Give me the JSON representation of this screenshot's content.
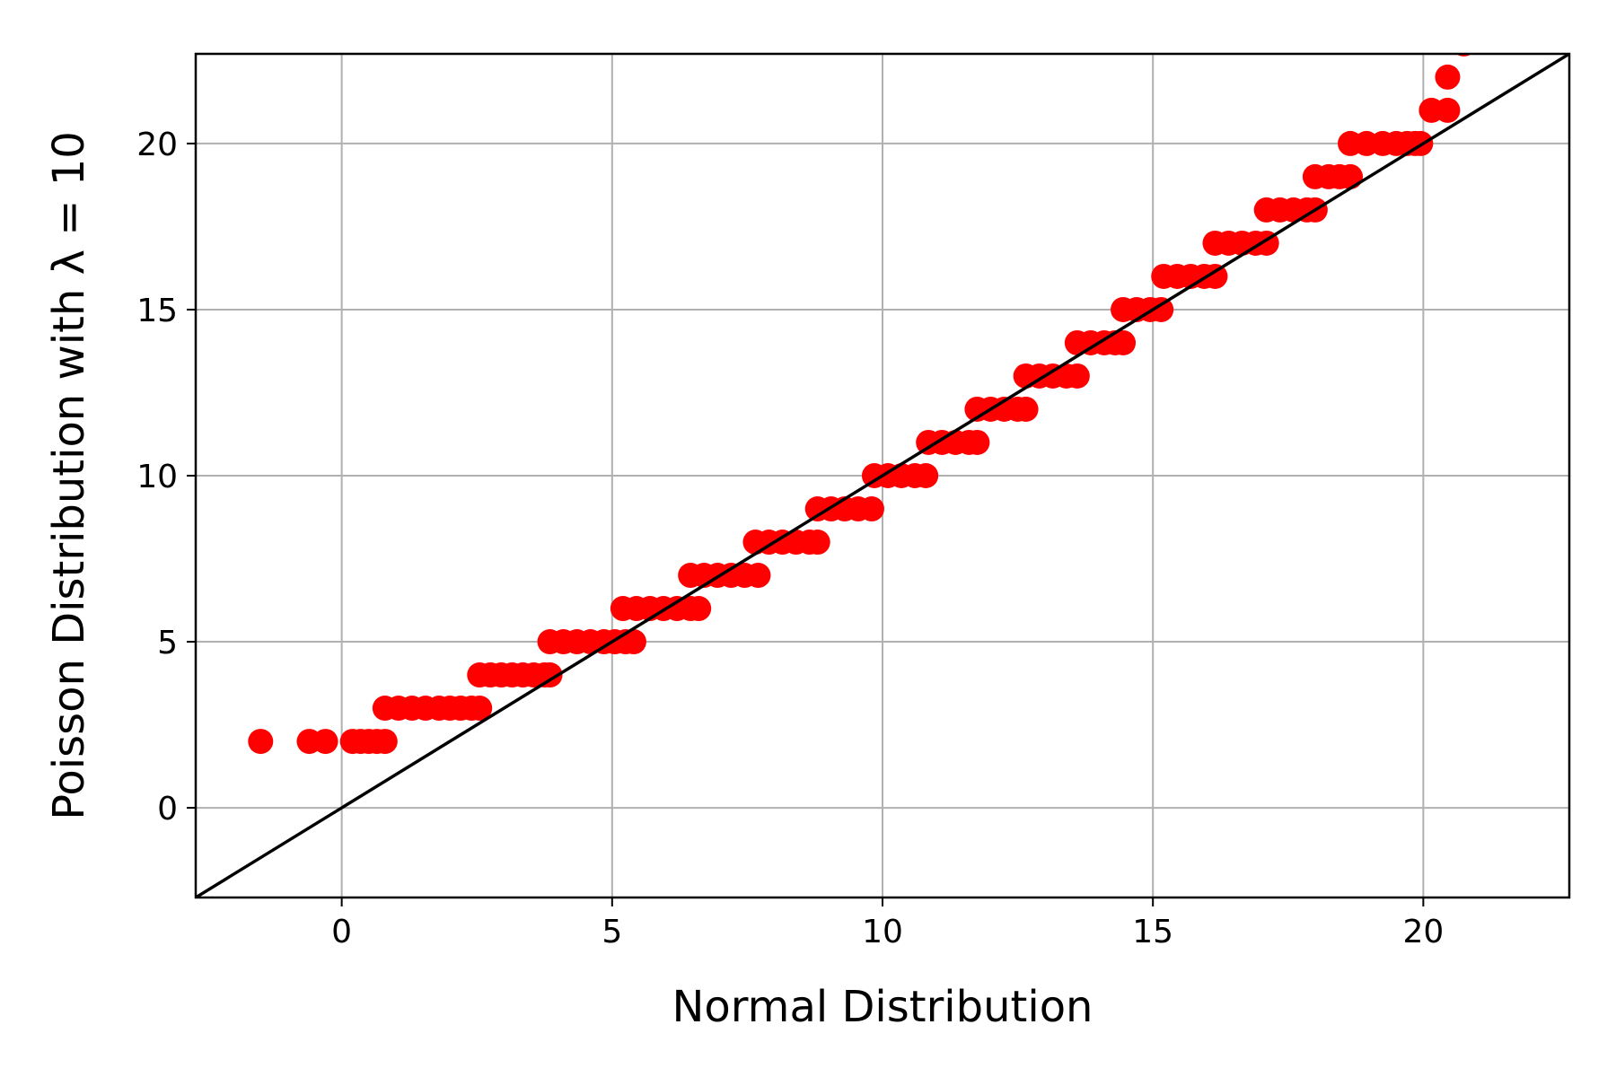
{
  "chart_data": {
    "type": "scatter",
    "title": "",
    "xlabel": "Normal Distribution",
    "ylabel": "Poisson Distribution with λ = 10",
    "xlim": [
      -2.7,
      22.7
    ],
    "ylim": [
      -2.7,
      22.7
    ],
    "x_ticks": [
      0,
      5,
      10,
      15,
      20
    ],
    "y_ticks": [
      0,
      5,
      10,
      15,
      20
    ],
    "tick_labels": [
      "0",
      "5",
      "10",
      "15",
      "20"
    ],
    "grid": true,
    "legend": "none",
    "marker_color": "#ff0000",
    "reference_line": {
      "from": [
        -2.7,
        -2.7
      ],
      "to": [
        22.7,
        22.7
      ],
      "color": "#000000"
    },
    "series": [
      {
        "color": "#ff0000",
        "points": [
          [
            -1.5,
            2
          ],
          [
            -0.6,
            2
          ],
          [
            -0.3,
            2
          ],
          [
            0.2,
            2
          ],
          [
            0.35,
            2
          ],
          [
            0.5,
            2
          ],
          [
            0.65,
            2
          ],
          [
            0.8,
            2
          ],
          [
            0.8,
            3
          ],
          [
            1.05,
            3
          ],
          [
            1.3,
            3
          ],
          [
            1.55,
            3
          ],
          [
            1.8,
            3
          ],
          [
            2.0,
            3
          ],
          [
            2.2,
            3
          ],
          [
            2.4,
            3
          ],
          [
            2.55,
            3
          ],
          [
            2.55,
            4
          ],
          [
            2.75,
            4
          ],
          [
            2.95,
            4
          ],
          [
            3.15,
            4
          ],
          [
            3.35,
            4
          ],
          [
            3.55,
            4
          ],
          [
            3.75,
            4
          ],
          [
            3.85,
            4
          ],
          [
            3.85,
            5
          ],
          [
            4.1,
            5
          ],
          [
            4.35,
            5
          ],
          [
            4.6,
            5
          ],
          [
            4.85,
            5
          ],
          [
            5.05,
            5
          ],
          [
            5.25,
            5
          ],
          [
            5.4,
            5
          ],
          [
            5.2,
            6
          ],
          [
            5.45,
            6
          ],
          [
            5.7,
            6
          ],
          [
            5.95,
            6
          ],
          [
            6.2,
            6
          ],
          [
            6.45,
            6
          ],
          [
            6.6,
            6
          ],
          [
            6.45,
            7
          ],
          [
            6.7,
            7
          ],
          [
            6.95,
            7
          ],
          [
            7.2,
            7
          ],
          [
            7.45,
            7
          ],
          [
            7.7,
            7
          ],
          [
            7.65,
            8
          ],
          [
            7.9,
            8
          ],
          [
            8.15,
            8
          ],
          [
            8.4,
            8
          ],
          [
            8.65,
            8
          ],
          [
            8.8,
            8
          ],
          [
            8.8,
            9
          ],
          [
            9.05,
            9
          ],
          [
            9.3,
            9
          ],
          [
            9.55,
            9
          ],
          [
            9.8,
            9
          ],
          [
            9.85,
            10
          ],
          [
            10.1,
            10
          ],
          [
            10.35,
            10
          ],
          [
            10.6,
            10
          ],
          [
            10.8,
            10
          ],
          [
            10.85,
            11
          ],
          [
            11.1,
            11
          ],
          [
            11.35,
            11
          ],
          [
            11.6,
            11
          ],
          [
            11.75,
            11
          ],
          [
            11.75,
            12
          ],
          [
            12.0,
            12
          ],
          [
            12.25,
            12
          ],
          [
            12.5,
            12
          ],
          [
            12.65,
            12
          ],
          [
            12.65,
            13
          ],
          [
            12.9,
            13
          ],
          [
            13.15,
            13
          ],
          [
            13.4,
            13
          ],
          [
            13.6,
            13
          ],
          [
            13.6,
            14
          ],
          [
            13.85,
            14
          ],
          [
            14.1,
            14
          ],
          [
            14.3,
            14
          ],
          [
            14.45,
            14
          ],
          [
            14.45,
            15
          ],
          [
            14.7,
            15
          ],
          [
            14.95,
            15
          ],
          [
            15.15,
            15
          ],
          [
            15.2,
            16
          ],
          [
            15.45,
            16
          ],
          [
            15.7,
            16
          ],
          [
            15.95,
            16
          ],
          [
            16.15,
            16
          ],
          [
            16.15,
            17
          ],
          [
            16.4,
            17
          ],
          [
            16.65,
            17
          ],
          [
            16.9,
            17
          ],
          [
            17.1,
            17
          ],
          [
            17.1,
            18
          ],
          [
            17.35,
            18
          ],
          [
            17.6,
            18
          ],
          [
            17.85,
            18
          ],
          [
            18.0,
            18
          ],
          [
            18.0,
            19
          ],
          [
            18.25,
            19
          ],
          [
            18.45,
            19
          ],
          [
            18.65,
            19
          ],
          [
            18.65,
            20
          ],
          [
            18.95,
            20
          ],
          [
            19.25,
            20
          ],
          [
            19.5,
            20
          ],
          [
            19.7,
            20
          ],
          [
            19.85,
            20
          ],
          [
            19.95,
            20
          ],
          [
            20.15,
            21
          ],
          [
            20.45,
            21
          ],
          [
            20.45,
            22
          ],
          [
            20.75,
            23
          ]
        ]
      }
    ]
  }
}
